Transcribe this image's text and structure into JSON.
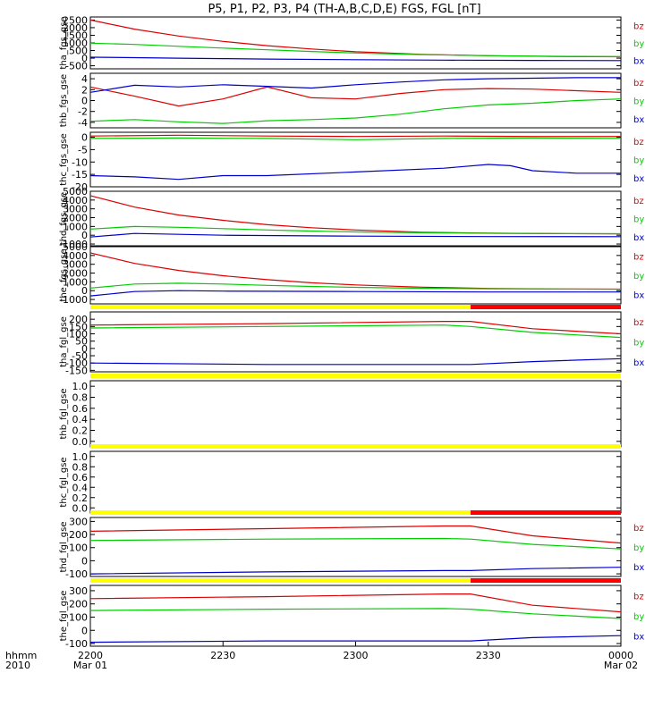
{
  "chart_data": {
    "type": "line",
    "title": "P5, P1, P2, P3, P4 (TH-A,B,C,D,E) FGS, FGL [nT]",
    "x_axis": {
      "range": [
        "2010-03-01 22:00",
        "2010-03-02 00:00"
      ],
      "ticks": [
        {
          "label": "2200",
          "sublabel": "Mar 01"
        },
        {
          "label": "2230",
          "sublabel": ""
        },
        {
          "label": "2300",
          "sublabel": ""
        },
        {
          "label": "2330",
          "sublabel": ""
        },
        {
          "label": "0000",
          "sublabel": "Mar 02"
        }
      ],
      "left_labels": [
        "hhmm",
        "2010"
      ]
    },
    "legend": [
      {
        "name": "bz",
        "color": "#dd0000"
      },
      {
        "name": "by",
        "color": "#00cc00"
      },
      {
        "name": "bx",
        "color": "#0000cc"
      }
    ],
    "colors": {
      "bz": "#dd0000",
      "by": "#00cc00",
      "bx": "#0000cc",
      "flag_yellow": "#ffff00",
      "flag_red": "#ff0000"
    },
    "x_units": "minutes after 22:00",
    "panels": [
      {
        "ylabel": "tha_fgs_gse",
        "ylim": [
          -700,
          2700
        ],
        "yticks": [
          -500,
          0,
          500,
          1000,
          1500,
          2000,
          2500
        ],
        "series": [
          {
            "name": "bz",
            "x": [
              0,
              10,
              20,
              30,
              40,
              50,
              60,
              75,
              90,
              105,
              120
            ],
            "y": [
              2500,
              1900,
              1450,
              1100,
              820,
              600,
              420,
              250,
              160,
              110,
              90
            ]
          },
          {
            "name": "by",
            "x": [
              0,
              10,
              20,
              30,
              40,
              50,
              60,
              75,
              90,
              105,
              120
            ],
            "y": [
              980,
              900,
              780,
              660,
              550,
              440,
              340,
              230,
              160,
              120,
              100
            ]
          },
          {
            "name": "bx",
            "x": [
              0,
              10,
              20,
              30,
              40,
              60,
              80,
              100,
              120
            ],
            "y": [
              60,
              30,
              0,
              -30,
              -60,
              -100,
              -130,
              -150,
              -160
            ]
          }
        ]
      },
      {
        "ylabel": "thb_fgs_gse",
        "ylim": [
          -5,
          5
        ],
        "yticks": [
          -4,
          -2,
          0,
          2,
          4
        ],
        "series": [
          {
            "name": "bz",
            "x": [
              0,
              10,
              20,
              30,
              40,
              50,
              60,
              70,
              80,
              90,
              100,
              110,
              120
            ],
            "y": [
              2.5,
              0.8,
              -1.0,
              0.3,
              2.5,
              0.5,
              0.3,
              1.3,
              2.0,
              2.2,
              2.1,
              1.8,
              1.5
            ]
          },
          {
            "name": "by",
            "x": [
              0,
              10,
              20,
              30,
              40,
              50,
              60,
              70,
              80,
              90,
              100,
              110,
              120
            ],
            "y": [
              -3.8,
              -3.5,
              -3.9,
              -4.2,
              -3.7,
              -3.5,
              -3.2,
              -2.5,
              -1.5,
              -0.8,
              -0.5,
              0.0,
              0.3
            ]
          },
          {
            "name": "bx",
            "x": [
              0,
              10,
              20,
              30,
              40,
              50,
              60,
              70,
              80,
              90,
              100,
              110,
              120
            ],
            "y": [
              1.5,
              2.8,
              2.5,
              2.9,
              2.6,
              2.3,
              2.9,
              3.4,
              3.8,
              4.0,
              4.1,
              4.2,
              4.2
            ]
          }
        ]
      },
      {
        "ylabel": "thc_fgs_gse",
        "ylim": [
          -20,
          2
        ],
        "yticks": [
          -20,
          -15,
          -10,
          -5,
          0
        ],
        "series": [
          {
            "name": "bz",
            "x": [
              0,
              20,
              40,
              60,
              80,
              100,
              120
            ],
            "y": [
              0.5,
              0.8,
              0.5,
              0.3,
              0.5,
              0.3,
              0.3
            ]
          },
          {
            "name": "by",
            "x": [
              0,
              20,
              40,
              60,
              80,
              100,
              120
            ],
            "y": [
              -0.5,
              -0.3,
              -0.5,
              -1.0,
              -0.5,
              -0.3,
              -0.5
            ]
          },
          {
            "name": "bx",
            "x": [
              0,
              10,
              20,
              30,
              40,
              60,
              80,
              90,
              95,
              100,
              110,
              120
            ],
            "y": [
              -15.5,
              -16.0,
              -17.0,
              -15.5,
              -15.5,
              -14.0,
              -12.5,
              -11.0,
              -11.5,
              -13.5,
              -14.5,
              -14.5
            ]
          }
        ]
      },
      {
        "ylabel": "thd_fgs_gse",
        "ylim": [
          -1200,
          5000
        ],
        "yticks": [
          -1000,
          0,
          1000,
          2000,
          3000,
          4000,
          5000
        ],
        "series": [
          {
            "name": "bz",
            "x": [
              0,
              10,
              20,
              30,
              40,
              50,
              60,
              75,
              90,
              105,
              120
            ],
            "y": [
              4500,
              3200,
              2300,
              1700,
              1200,
              850,
              600,
              350,
              230,
              180,
              160
            ]
          },
          {
            "name": "by",
            "x": [
              0,
              10,
              20,
              30,
              40,
              50,
              60,
              75,
              90,
              105,
              120
            ],
            "y": [
              700,
              1000,
              900,
              750,
              600,
              480,
              380,
              280,
              220,
              190,
              170
            ]
          },
          {
            "name": "bx",
            "x": [
              0,
              10,
              20,
              30,
              60,
              90,
              120
            ],
            "y": [
              -200,
              200,
              100,
              0,
              -100,
              -150,
              -160
            ]
          }
        ]
      },
      {
        "ylabel": "the_fgs_gse",
        "ylim": [
          -1500,
          5000
        ],
        "yticks": [
          -1000,
          0,
          1000,
          2000,
          3000,
          4000,
          5000
        ],
        "series": [
          {
            "name": "bz",
            "x": [
              0,
              10,
              20,
              30,
              40,
              50,
              60,
              75,
              90,
              105,
              120
            ],
            "y": [
              4300,
              3100,
              2300,
              1700,
              1250,
              900,
              650,
              400,
              260,
              200,
              180
            ]
          },
          {
            "name": "by",
            "x": [
              0,
              10,
              20,
              30,
              40,
              50,
              60,
              75,
              90,
              105,
              120
            ],
            "y": [
              300,
              750,
              850,
              750,
              600,
              480,
              380,
              280,
              220,
              190,
              170
            ]
          },
          {
            "name": "bx",
            "x": [
              0,
              10,
              20,
              30,
              60,
              90,
              120
            ],
            "y": [
              -600,
              -100,
              0,
              -50,
              -100,
              -150,
              -150
            ]
          }
        ]
      },
      {
        "ylabel": "tha_fgl_gse",
        "ylim": [
          -160,
          250
        ],
        "yticks": [
          -150,
          -100,
          -50,
          0,
          50,
          100,
          150,
          200
        ],
        "series": [
          {
            "name": "bz",
            "x": [
              0,
              40,
              80,
              86,
              100,
              120
            ],
            "y": [
              160,
              170,
              185,
              185,
              135,
              100
            ]
          },
          {
            "name": "by",
            "x": [
              0,
              40,
              80,
              86,
              100,
              120
            ],
            "y": [
              140,
              150,
              160,
              150,
              110,
              75
            ]
          },
          {
            "name": "bx",
            "x": [
              0,
              40,
              80,
              86,
              100,
              120
            ],
            "y": [
              -100,
              -110,
              -110,
              -110,
              -90,
              -70
            ]
          }
        ]
      },
      {
        "ylabel": "thb_fgl_gse",
        "ylim": [
          -0.1,
          1.1
        ],
        "yticks": [
          0.0,
          0.2,
          0.4,
          0.6,
          0.8,
          1.0
        ],
        "series": []
      },
      {
        "ylabel": "thc_fgl_gse",
        "ylim": [
          -0.1,
          1.1
        ],
        "yticks": [
          0.0,
          0.2,
          0.4,
          0.6,
          0.8,
          1.0
        ],
        "series": []
      },
      {
        "ylabel": "thd_fgl_gse",
        "ylim": [
          -120,
          330
        ],
        "yticks": [
          -100,
          0,
          100,
          200,
          300
        ],
        "series": [
          {
            "name": "bz",
            "x": [
              0,
              40,
              80,
              86,
              100,
              120
            ],
            "y": [
              225,
              245,
              265,
              265,
              190,
              135
            ]
          },
          {
            "name": "by",
            "x": [
              0,
              40,
              80,
              86,
              100,
              120
            ],
            "y": [
              155,
              165,
              170,
              165,
              125,
              90
            ]
          },
          {
            "name": "bx",
            "x": [
              0,
              40,
              80,
              86,
              100,
              120
            ],
            "y": [
              -100,
              -85,
              -75,
              -75,
              -60,
              -50
            ]
          }
        ]
      },
      {
        "ylabel": "the_fgl_gse",
        "ylim": [
          -120,
          340
        ],
        "yticks": [
          -100,
          0,
          100,
          200,
          300
        ],
        "series": [
          {
            "name": "bz",
            "x": [
              0,
              40,
              80,
              86,
              100,
              120
            ],
            "y": [
              240,
              255,
              275,
              275,
              190,
              140
            ]
          },
          {
            "name": "by",
            "x": [
              0,
              40,
              80,
              86,
              100,
              120
            ],
            "y": [
              150,
              160,
              165,
              160,
              125,
              90
            ]
          },
          {
            "name": "bx",
            "x": [
              0,
              40,
              80,
              86,
              100,
              120
            ],
            "y": [
              -90,
              -80,
              -80,
              -80,
              -55,
              -40
            ]
          }
        ]
      }
    ],
    "flag_bars": [
      {
        "below_panel": 5,
        "segments": [
          {
            "from": 0,
            "to": 86,
            "color": "flag_yellow"
          },
          {
            "from": 86,
            "to": 120,
            "color": "flag_red"
          }
        ]
      },
      {
        "below_panel": 6,
        "segments": [
          {
            "from": 0,
            "to": 120,
            "color": "flag_yellow"
          }
        ]
      },
      {
        "below_panel": 7,
        "segments": [
          {
            "from": 0,
            "to": 120,
            "color": "flag_yellow"
          }
        ]
      },
      {
        "below_panel": 8,
        "segments": [
          {
            "from": 0,
            "to": 86,
            "color": "flag_yellow"
          },
          {
            "from": 86,
            "to": 120,
            "color": "flag_red"
          }
        ]
      },
      {
        "below_panel": 9,
        "segments": [
          {
            "from": 0,
            "to": 86,
            "color": "flag_yellow"
          },
          {
            "from": 86,
            "to": 120,
            "color": "flag_red"
          }
        ]
      }
    ]
  }
}
